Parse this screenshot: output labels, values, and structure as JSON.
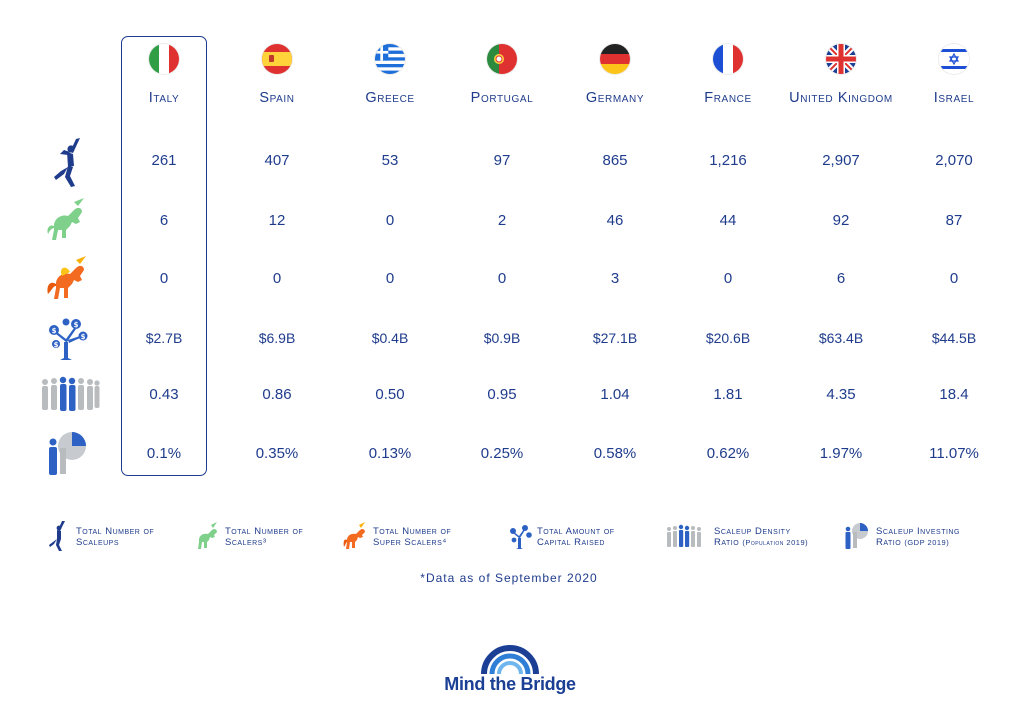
{
  "countries": [
    {
      "name": "Italy",
      "scaleups": "261",
      "scalers": "6",
      "super_scalers": "0",
      "capital": "$2.7B",
      "density": "0.43",
      "investing": "0.1%"
    },
    {
      "name": "Spain",
      "scaleups": "407",
      "scalers": "12",
      "super_scalers": "0",
      "capital": "$6.9B",
      "density": "0.86",
      "investing": "0.35%"
    },
    {
      "name": "Greece",
      "scaleups": "53",
      "scalers": "0",
      "super_scalers": "0",
      "capital": "$0.4B",
      "density": "0.50",
      "investing": "0.13%"
    },
    {
      "name": "Portugal",
      "scaleups": "97",
      "scalers": "2",
      "super_scalers": "0",
      "capital": "$0.9B",
      "density": "0.95",
      "investing": "0.25%"
    },
    {
      "name": "Germany",
      "scaleups": "865",
      "scalers": "46",
      "super_scalers": "3",
      "capital": "$27.1B",
      "density": "1.04",
      "investing": "0.58%"
    },
    {
      "name": "France",
      "scaleups": "1,216",
      "scalers": "44",
      "super_scalers": "0",
      "capital": "$20.6B",
      "density": "1.81",
      "investing": "0.62%"
    },
    {
      "name": "United Kingdom",
      "scaleups": "2,907",
      "scalers": "92",
      "super_scalers": "6",
      "capital": "$63.4B",
      "density": "4.35",
      "investing": "1.97%"
    },
    {
      "name": "Israel",
      "scaleups": "2,070",
      "scalers": "87",
      "super_scalers": "0",
      "capital": "$44.5B",
      "density": "18.4",
      "investing": "11.07%"
    }
  ],
  "legend": {
    "scaleups": [
      "Total Number of",
      "Scaleups"
    ],
    "scalers": [
      "Total Number of",
      "Scalers³"
    ],
    "super_scalers": [
      "Total Number of",
      "Super Scalers⁴"
    ],
    "capital": [
      "Total Amount of",
      "Capital Raised"
    ],
    "density": [
      "Scaleup Density",
      "Ratio",
      "(Population 2019)"
    ],
    "investing": [
      "Scaleup Investing",
      "Ratio",
      "(GDP 2019)"
    ]
  },
  "note": "*Data as of September 2020",
  "logo_text": "Mind the Bridge",
  "colors": {
    "primary_blue": "#1f3c8c",
    "scaler_green": "#7ed08a",
    "super_scaler_orange": "#f26b21",
    "person_gray": "#b9bcbf"
  }
}
